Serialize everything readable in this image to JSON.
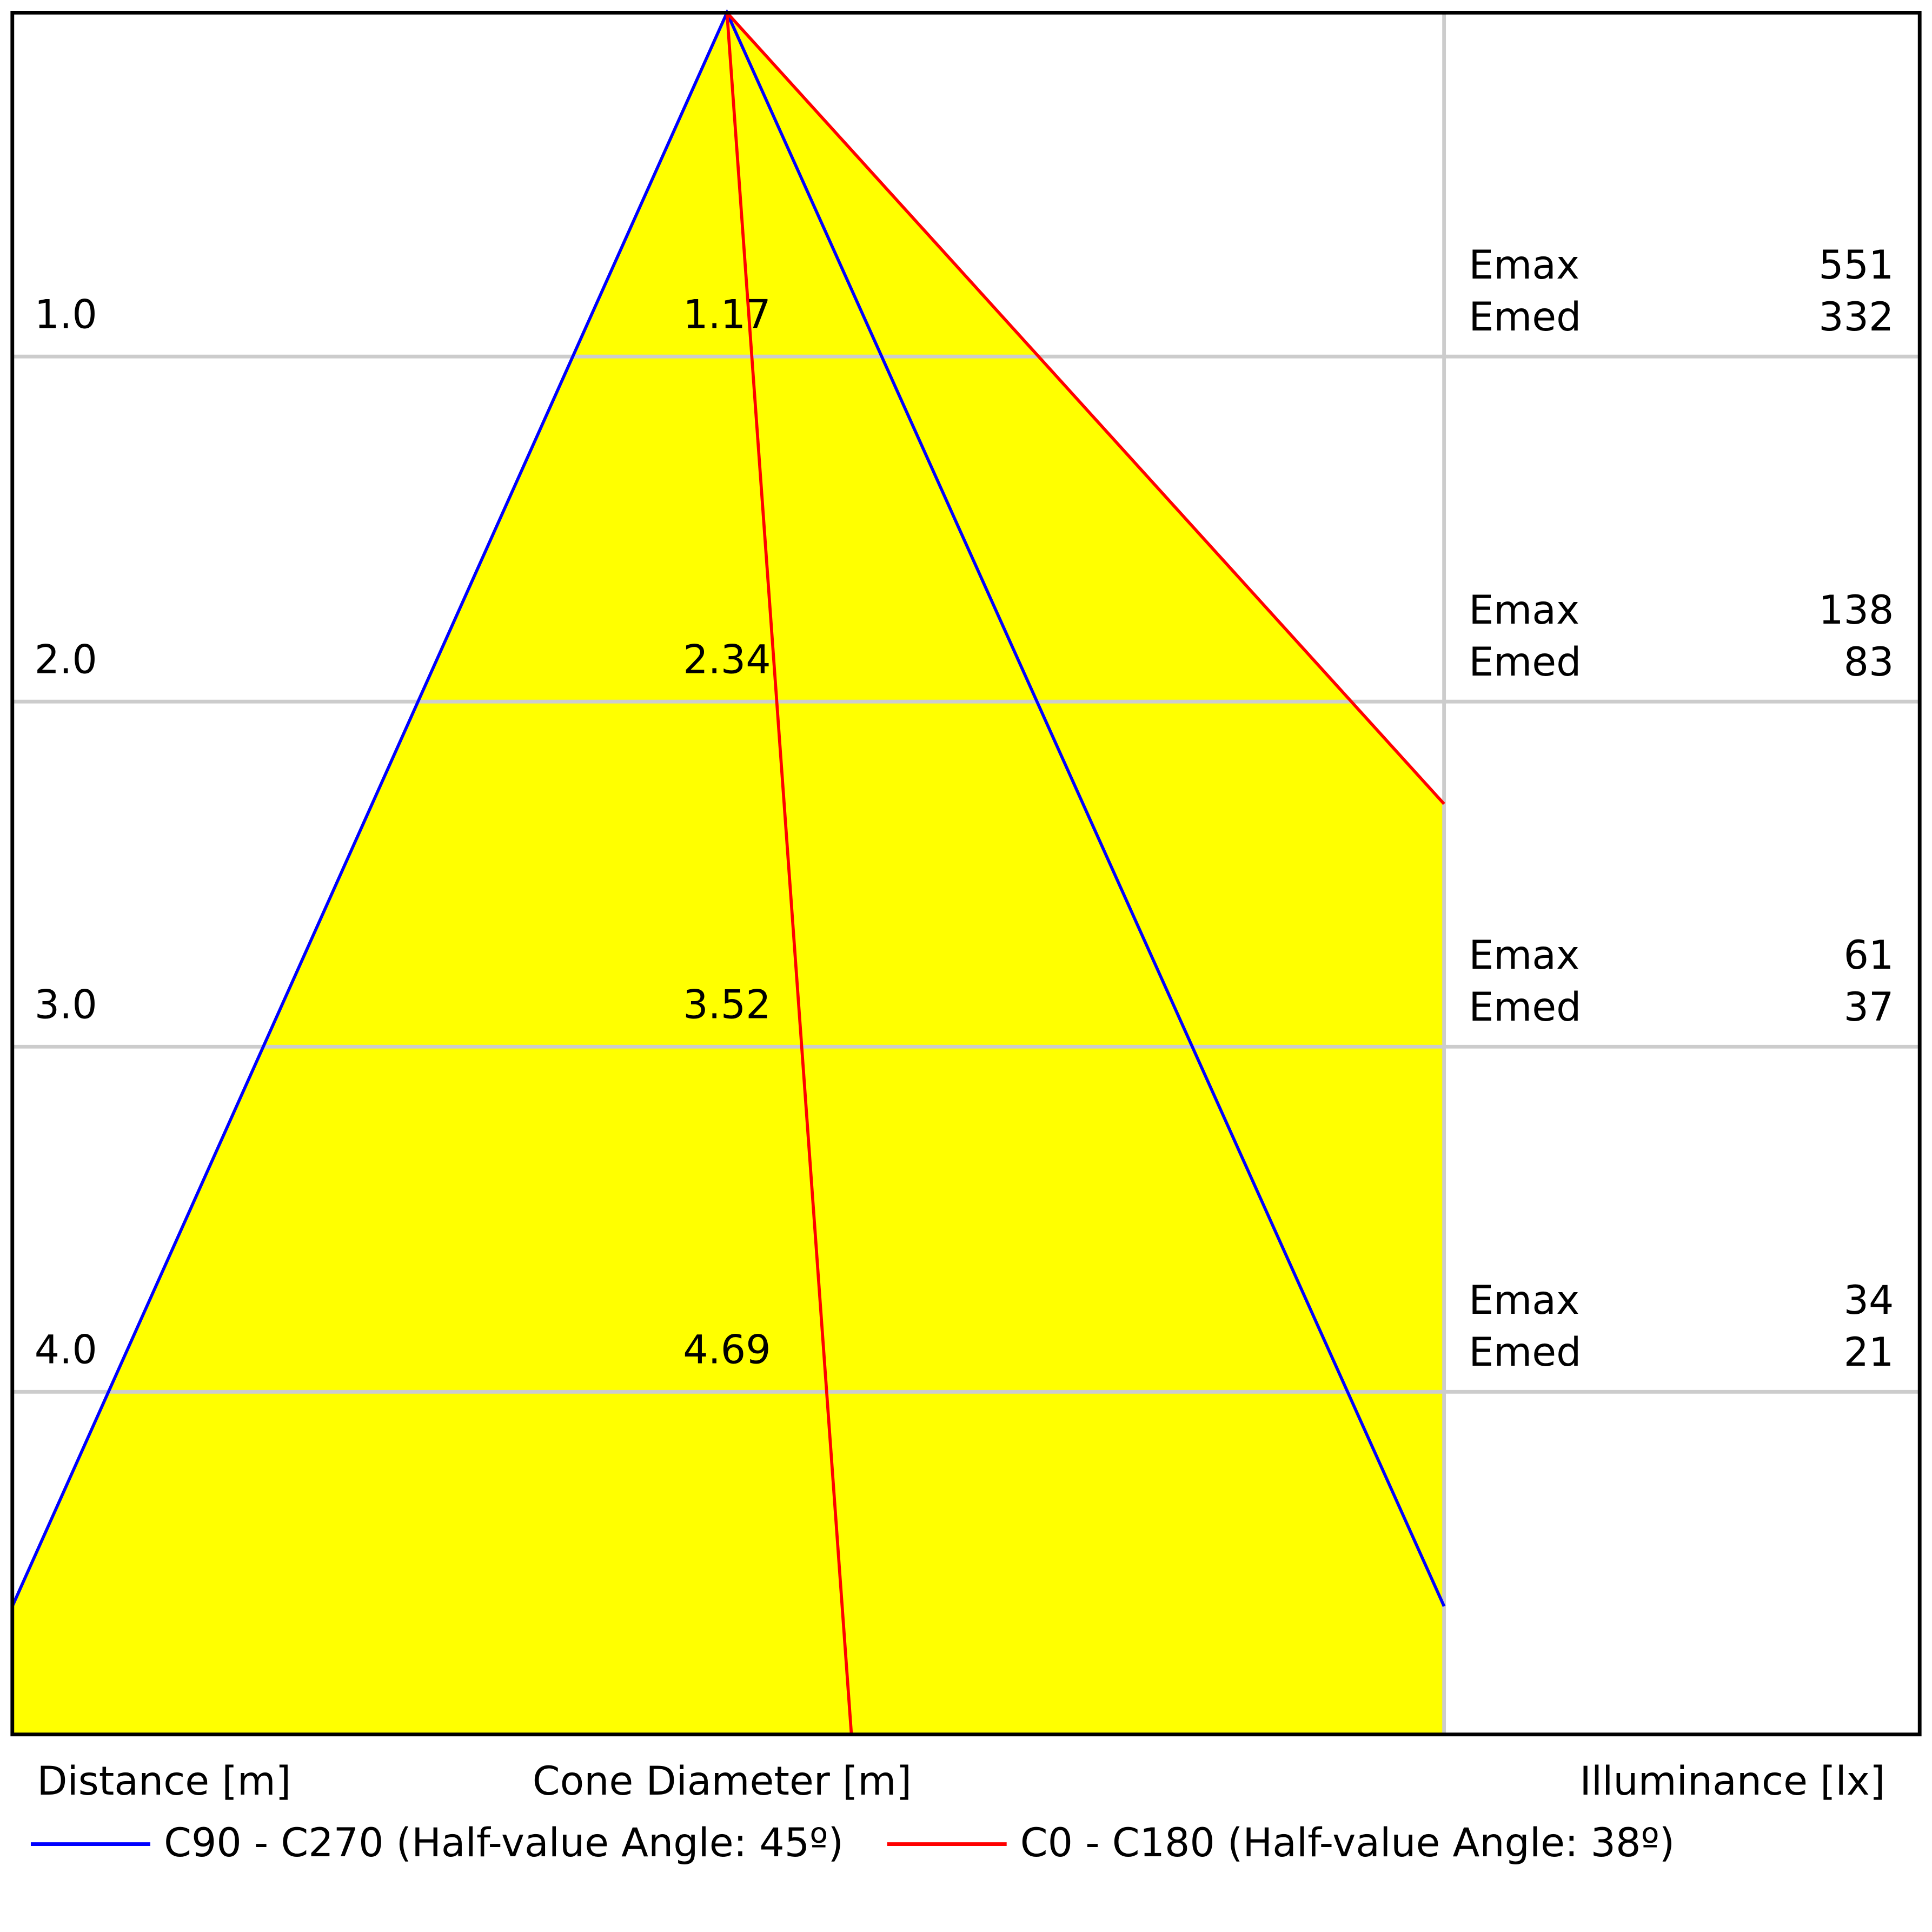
{
  "rows": [
    {
      "distance": "1.0",
      "diameter": "1.17",
      "emax_label": "Emax",
      "emax": "551",
      "emed_label": "Emed",
      "emed": "332"
    },
    {
      "distance": "2.0",
      "diameter": "2.34",
      "emax_label": "Emax",
      "emax": "138",
      "emed_label": "Emed",
      "emed": "83"
    },
    {
      "distance": "3.0",
      "diameter": "3.52",
      "emax_label": "Emax",
      "emax": "61",
      "emed_label": "Emed",
      "emed": "37"
    },
    {
      "distance": "4.0",
      "diameter": "4.69",
      "emax_label": "Emax",
      "emax": "34",
      "emed_label": "Emed",
      "emed": "21"
    }
  ],
  "axis_labels": {
    "distance": "Distance [m]",
    "diameter": "Cone Diameter [m]",
    "illuminance": "Illuminance [lx]"
  },
  "legend": [
    {
      "label": "C90 - C270 (Half-value Angle: 45º)",
      "color": "#0000ff"
    },
    {
      "label": "C0 - C180 (Half-value Angle: 38º)",
      "color": "#ff0000"
    }
  ]
}
